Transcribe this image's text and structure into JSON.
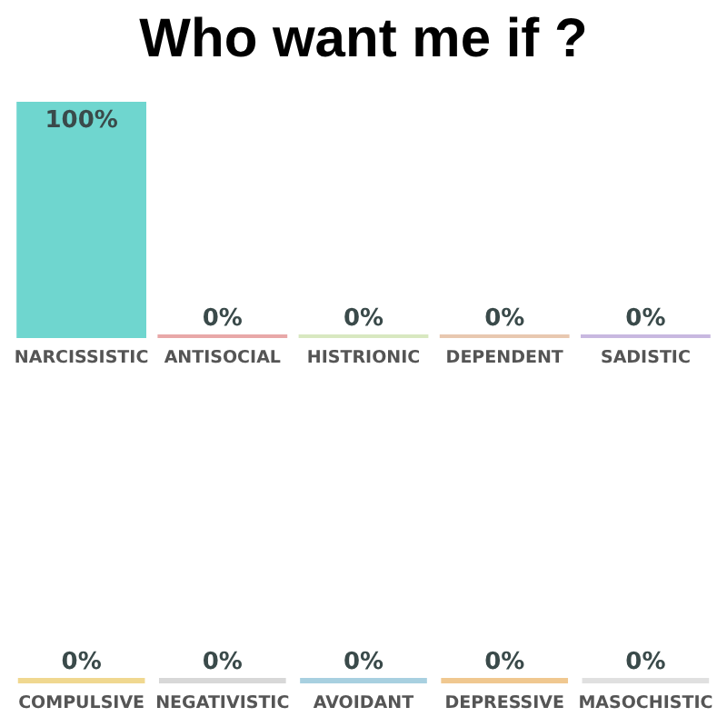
{
  "chart_data": [
    {
      "type": "bar",
      "title": "Who want me if ?",
      "categories": [
        "NARCISSISTIC",
        "ANTISOCIAL",
        "HISTRIONIC",
        "DEPENDENT",
        "SADISTIC"
      ],
      "values": [
        100,
        0,
        0,
        0,
        0
      ],
      "value_labels": [
        "100%",
        "0%",
        "0%",
        "0%",
        "0%"
      ],
      "colors": [
        "#6fd6cf",
        "#e8a8a8",
        "#d8e8c0",
        "#e8c8b0",
        "#c8b8e0"
      ],
      "tick_labels": "x"
    },
    {
      "type": "other",
      "categories": [
        "COMPULSIVE",
        "NEGATIVISTIC",
        "AVOIDANT",
        "DEPRESSIVE",
        "MASOCHISTIC"
      ],
      "values": [
        0,
        0,
        0,
        0,
        0
      ],
      "value_labels": [
        "0%",
        "0%",
        "0%",
        "0%",
        "0%"
      ],
      "colors": [
        "#f0d890",
        "#d8d8d8",
        "#a8d0e0",
        "#f0c890",
        "#e0e0e0"
      ]
    }
  ]
}
